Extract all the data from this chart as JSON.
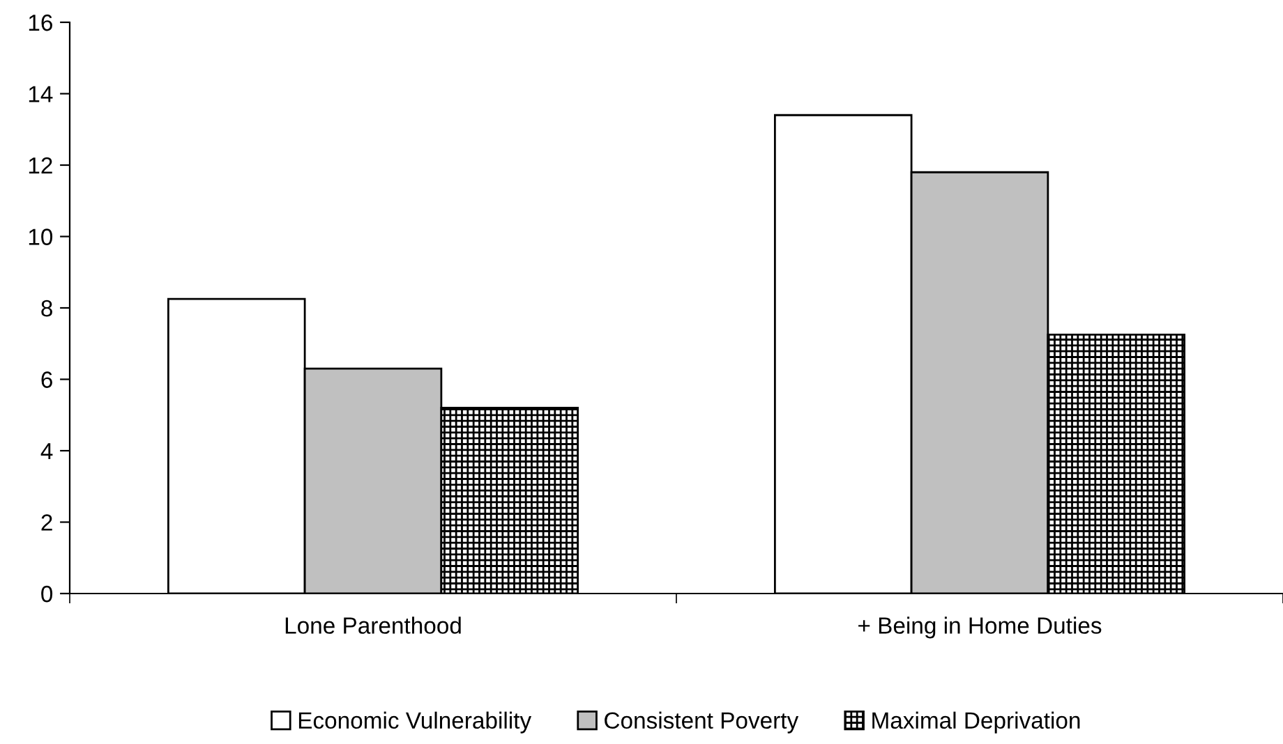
{
  "chart_data": {
    "type": "bar",
    "categories": [
      "Lone Parenthood",
      "+ Being in Home Duties"
    ],
    "series": [
      {
        "name": "Economic Vulnerability",
        "color": "#ffffff",
        "values": [
          8.25,
          13.4
        ]
      },
      {
        "name": "Consistent Poverty",
        "color": "#c0c0c0",
        "values": [
          6.3,
          11.8
        ]
      },
      {
        "name": "Maximal Deprivation",
        "color": "#000000",
        "values": [
          5.2,
          7.25
        ]
      }
    ],
    "ylim": [
      0,
      16
    ],
    "yticks": [
      0,
      2,
      4,
      6,
      8,
      10,
      12,
      14,
      16
    ],
    "grid": false,
    "legend": "bottom"
  }
}
